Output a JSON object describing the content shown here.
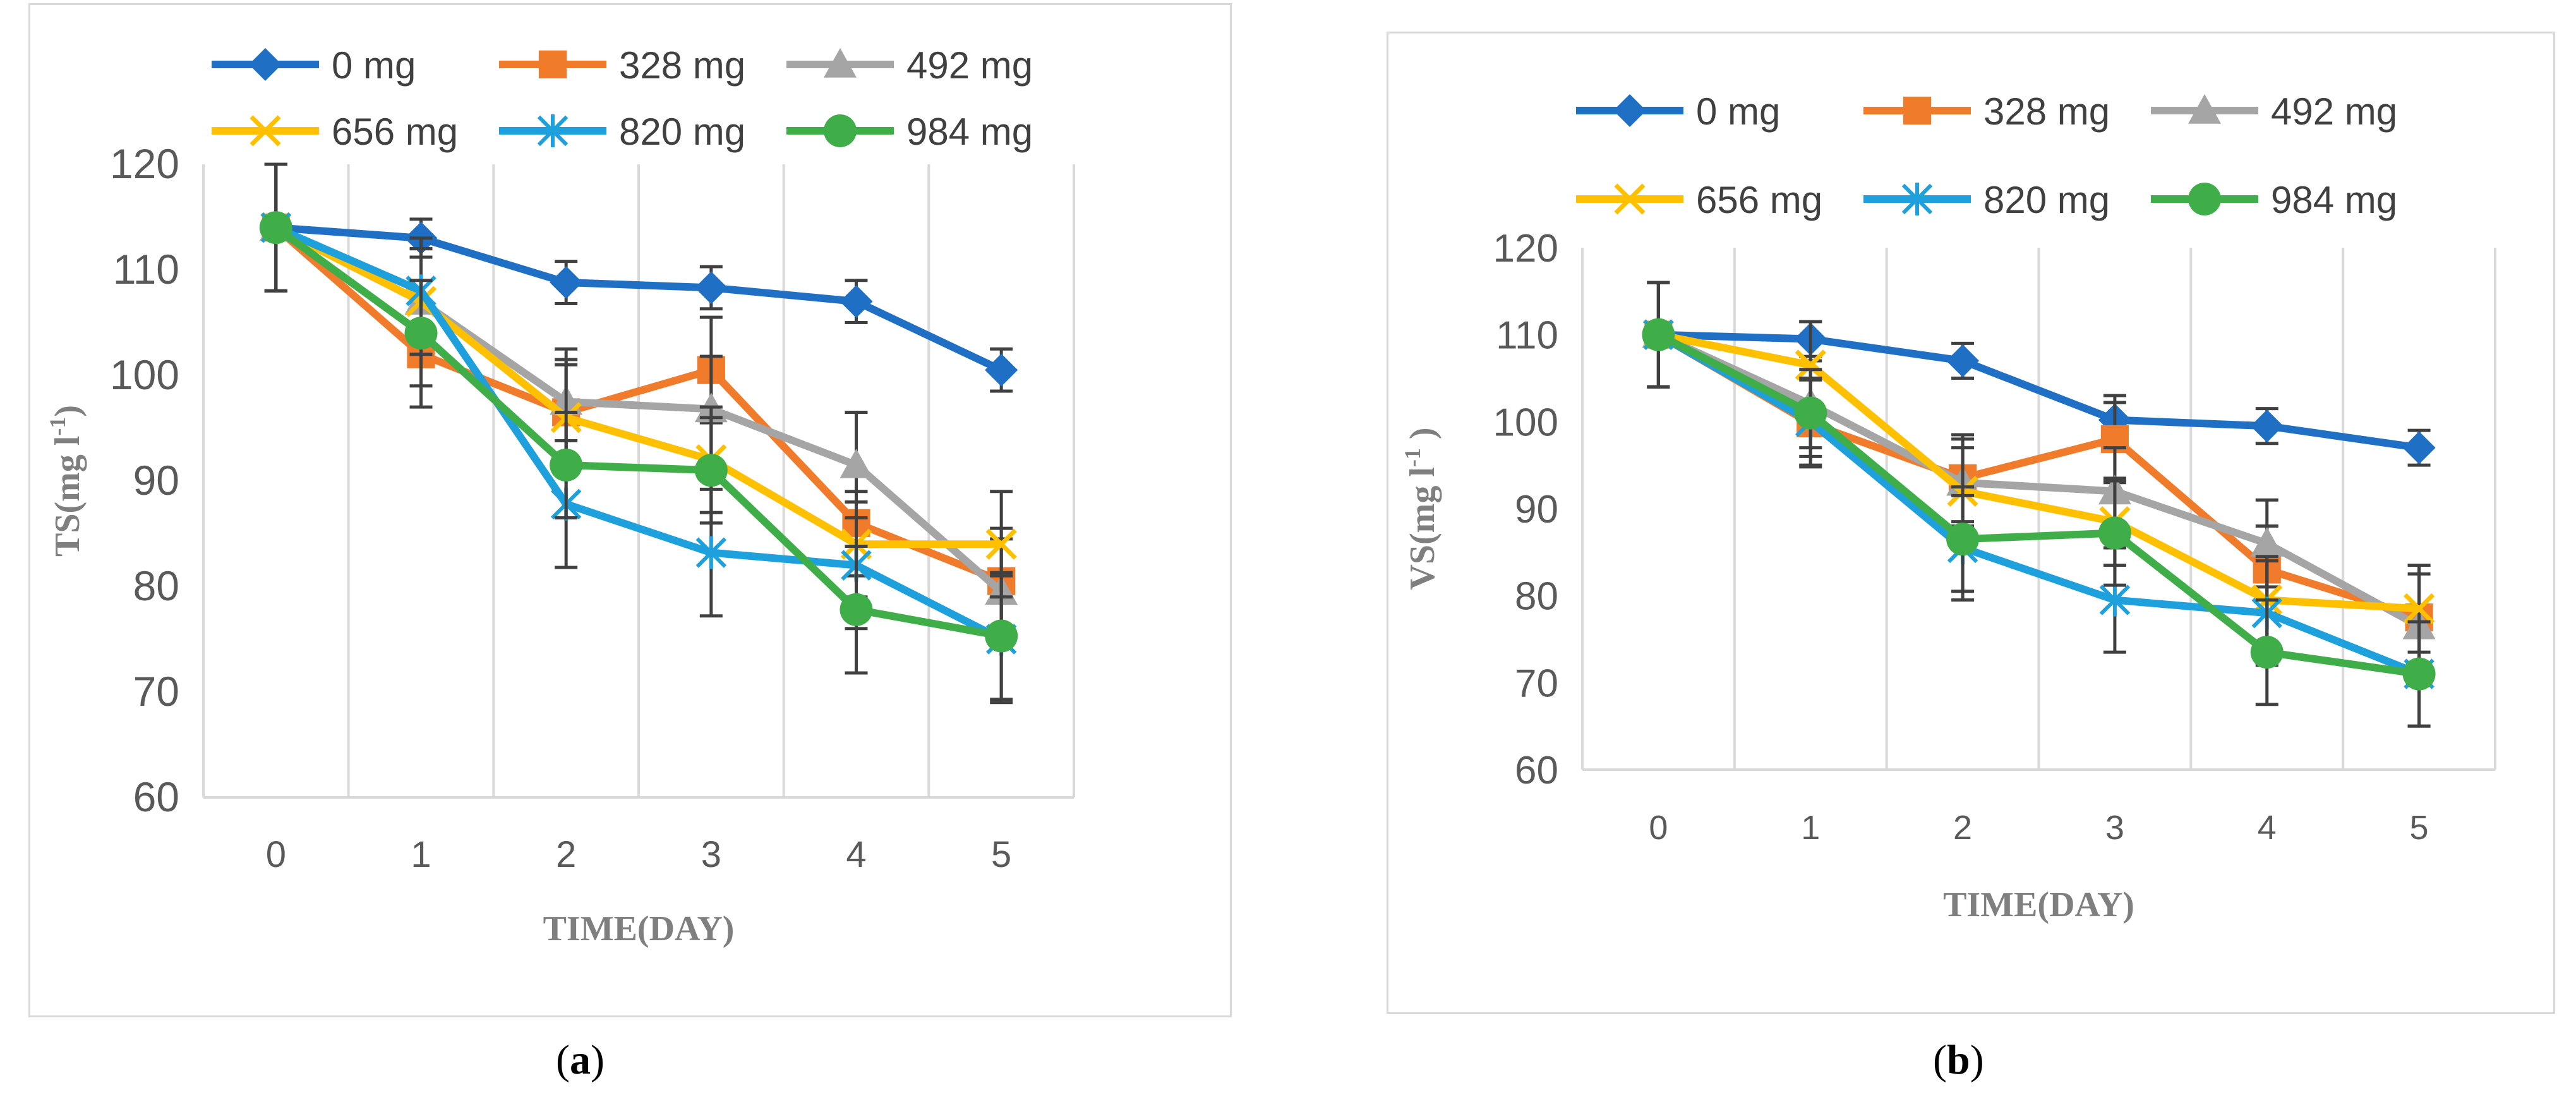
{
  "chart_data": [
    {
      "type": "line",
      "panel_caption": "a",
      "xlabel": "TIME(DAY)",
      "ylabel": "TS(mg l",
      "ylabel_sup": "-1",
      "ylabel_close": ")",
      "x": [
        0,
        1,
        2,
        3,
        4,
        5
      ],
      "ylim": [
        60,
        120
      ],
      "yticks": [
        60,
        70,
        80,
        90,
        100,
        110,
        120
      ],
      "grid": "vertical",
      "legend_position": "top",
      "series": [
        {
          "name": "0 mg",
          "color": "#1f6fc5",
          "marker": "diamond",
          "values": [
            114,
            113,
            108.8,
            108.3,
            107,
            100.5
          ],
          "err": [
            6,
            1.8,
            2,
            2,
            2,
            2
          ]
        },
        {
          "name": "328 mg",
          "color": "#f07c2b",
          "marker": "square",
          "values": [
            114,
            102,
            96.5,
            100.5,
            86,
            80.5
          ],
          "err": [
            6,
            5,
            5,
            5,
            5,
            5
          ]
        },
        {
          "name": "492 mg",
          "color": "#a5a5a5",
          "marker": "triangle",
          "values": [
            114,
            107,
            97.5,
            96.8,
            91.5,
            79.5
          ],
          "err": [
            6,
            5,
            5,
            5,
            5,
            5
          ]
        },
        {
          "name": "656 mg",
          "color": "#ffc000",
          "marker": "x",
          "values": [
            114,
            107,
            96,
            92,
            84,
            84
          ],
          "err": [
            6,
            5,
            5,
            5,
            5,
            5
          ]
        },
        {
          "name": "820 mg",
          "color": "#1ea0dc",
          "marker": "star",
          "values": [
            114,
            108,
            87.8,
            83.2,
            82,
            75
          ],
          "err": [
            6,
            5,
            6,
            6,
            6,
            6
          ]
        },
        {
          "name": "984 mg",
          "color": "#3fae49",
          "marker": "circle",
          "values": [
            114,
            104,
            91.5,
            91,
            77.8,
            75.3
          ],
          "err": [
            6,
            5,
            5,
            5,
            6,
            6
          ]
        }
      ]
    },
    {
      "type": "line",
      "panel_caption": "b",
      "xlabel": "TIME(DAY)",
      "ylabel": "VS(mg l",
      "ylabel_sup": "-1",
      "ylabel_close": " )",
      "x": [
        0,
        1,
        2,
        3,
        4,
        5
      ],
      "ylim": [
        60,
        120
      ],
      "yticks": [
        60,
        70,
        80,
        90,
        100,
        110,
        120
      ],
      "grid": "vertical",
      "legend_position": "top",
      "series": [
        {
          "name": "0 mg",
          "color": "#1f6fc5",
          "marker": "diamond",
          "values": [
            110,
            109.5,
            107,
            100.2,
            99.5,
            97
          ],
          "err": [
            6,
            2,
            2,
            2,
            2,
            2
          ]
        },
        {
          "name": "328 mg",
          "color": "#f07c2b",
          "marker": "square",
          "values": [
            110,
            99.8,
            93.5,
            98,
            83,
            77.5
          ],
          "err": [
            6,
            5,
            5,
            5,
            5,
            6
          ]
        },
        {
          "name": "492 mg",
          "color": "#a5a5a5",
          "marker": "triangle",
          "values": [
            110,
            102,
            93,
            92,
            86,
            76.5
          ],
          "err": [
            6,
            5,
            5,
            5,
            5,
            6
          ]
        },
        {
          "name": "656 mg",
          "color": "#ffc000",
          "marker": "x",
          "values": [
            110,
            106.5,
            92,
            88.5,
            79.5,
            78.5
          ],
          "err": [
            6,
            5,
            5,
            5,
            5,
            5
          ]
        },
        {
          "name": "820 mg",
          "color": "#1ea0dc",
          "marker": "star",
          "values": [
            110,
            100,
            85.5,
            79.5,
            78,
            71
          ],
          "err": [
            6,
            5,
            6,
            6,
            6,
            6
          ]
        },
        {
          "name": "984 mg",
          "color": "#3fae49",
          "marker": "circle",
          "values": [
            110,
            101,
            86.5,
            87.2,
            73.5,
            71
          ],
          "err": [
            6,
            5,
            6,
            6,
            6,
            6
          ]
        }
      ]
    }
  ]
}
